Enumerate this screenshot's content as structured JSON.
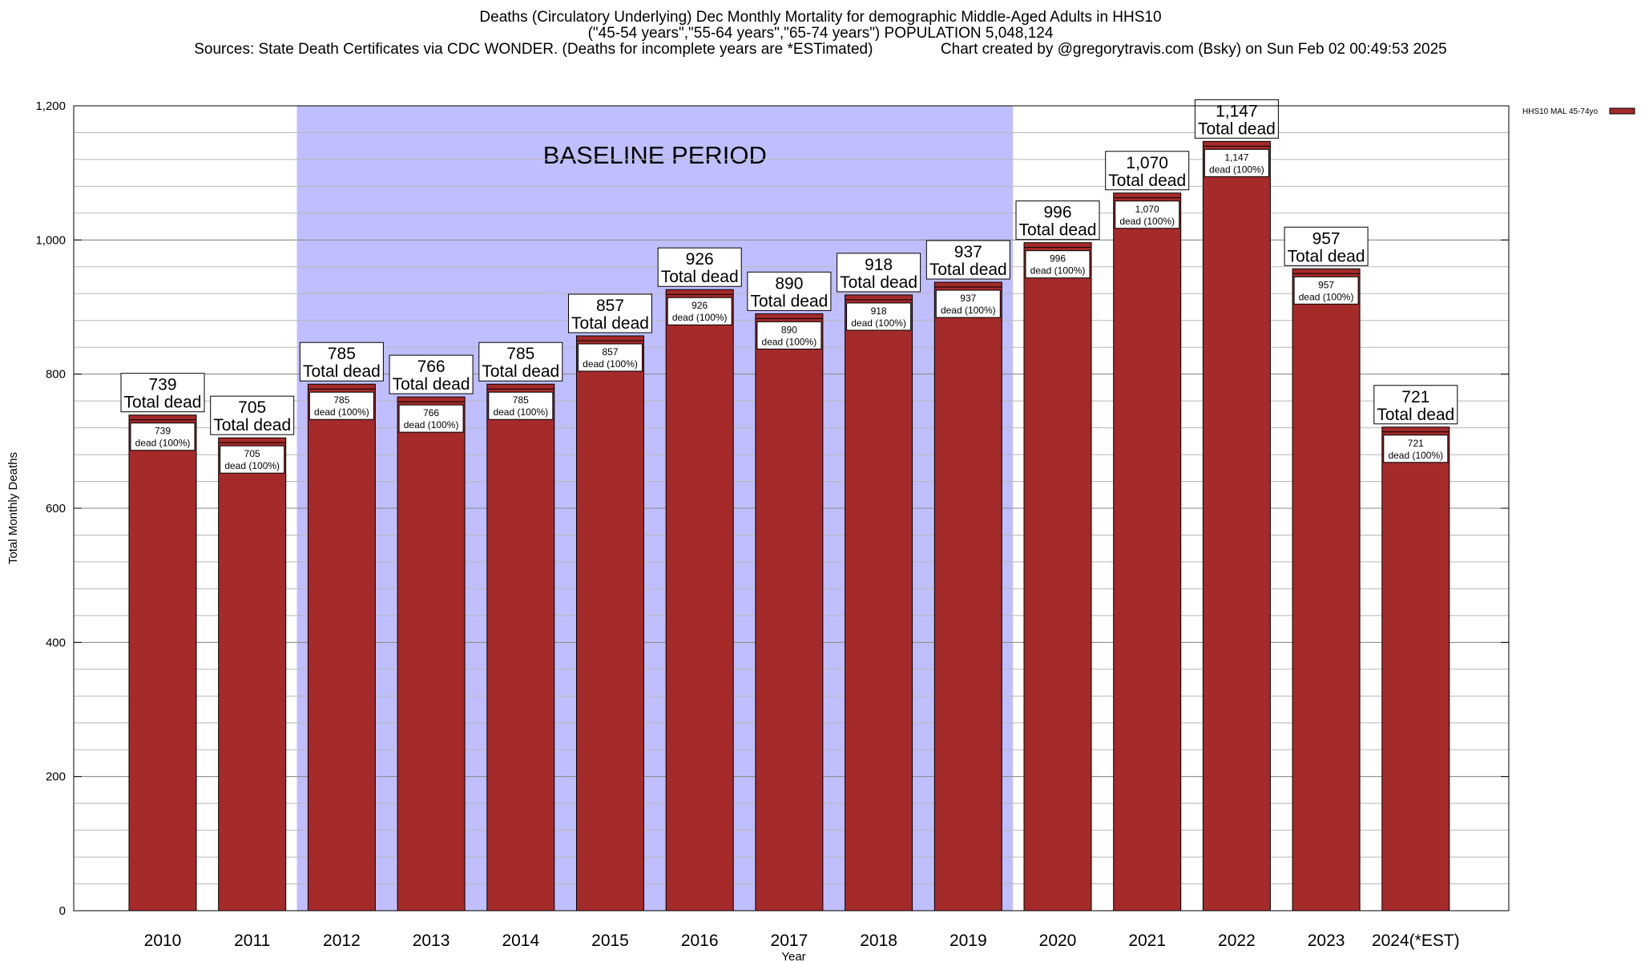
{
  "title": {
    "line1": "Deaths (Circulatory Underlying) Dec Monthly Mortality for demographic Middle-Aged Adults in HHS10",
    "line2": "(\"45-54 years\",\"55-64 years\",\"65-74 years\") POPULATION 5,048,124",
    "line3": "Sources: State Death Certificates via CDC WONDER. (Deaths for incomplete years are *ESTimated)                Chart created by @gregorytravis.com (Bsky) on Sun Feb 02 00:49:53 2025"
  },
  "chart_data": {
    "type": "bar",
    "xlabel": "Year",
    "ylabel": "Total Monthly Deaths",
    "ylim": [
      0,
      1200
    ],
    "yticks": [
      0,
      200,
      400,
      600,
      800,
      1000,
      1200
    ],
    "ytick_labels": [
      "0",
      "200",
      "400",
      "600",
      "800",
      "1,000",
      "1,200"
    ],
    "grid": true,
    "legend_position": "top-right",
    "categories": [
      "2010",
      "2011",
      "2012",
      "2013",
      "2014",
      "2015",
      "2016",
      "2017",
      "2018",
      "2019",
      "2020",
      "2021",
      "2022",
      "2023",
      "2024(*EST)"
    ],
    "series": [
      {
        "name": "HHS10 MAL 45-74yo",
        "color": "#a52a2a",
        "values": [
          739,
          705,
          785,
          766,
          785,
          857,
          926,
          890,
          918,
          937,
          996,
          1070,
          1147,
          957,
          721
        ],
        "value_labels": [
          "739",
          "705",
          "785",
          "766",
          "785",
          "857",
          "926",
          "890",
          "918",
          "937",
          "996",
          "1,070",
          "1,147",
          "957",
          "721"
        ]
      }
    ],
    "top_label_suffix": "Total dead",
    "inner_label_suffix": "dead (100%)",
    "baseline_period": {
      "label": "BASELINE PERIOD",
      "start": "2012",
      "end": "2019",
      "color": "#bfbfff"
    }
  }
}
